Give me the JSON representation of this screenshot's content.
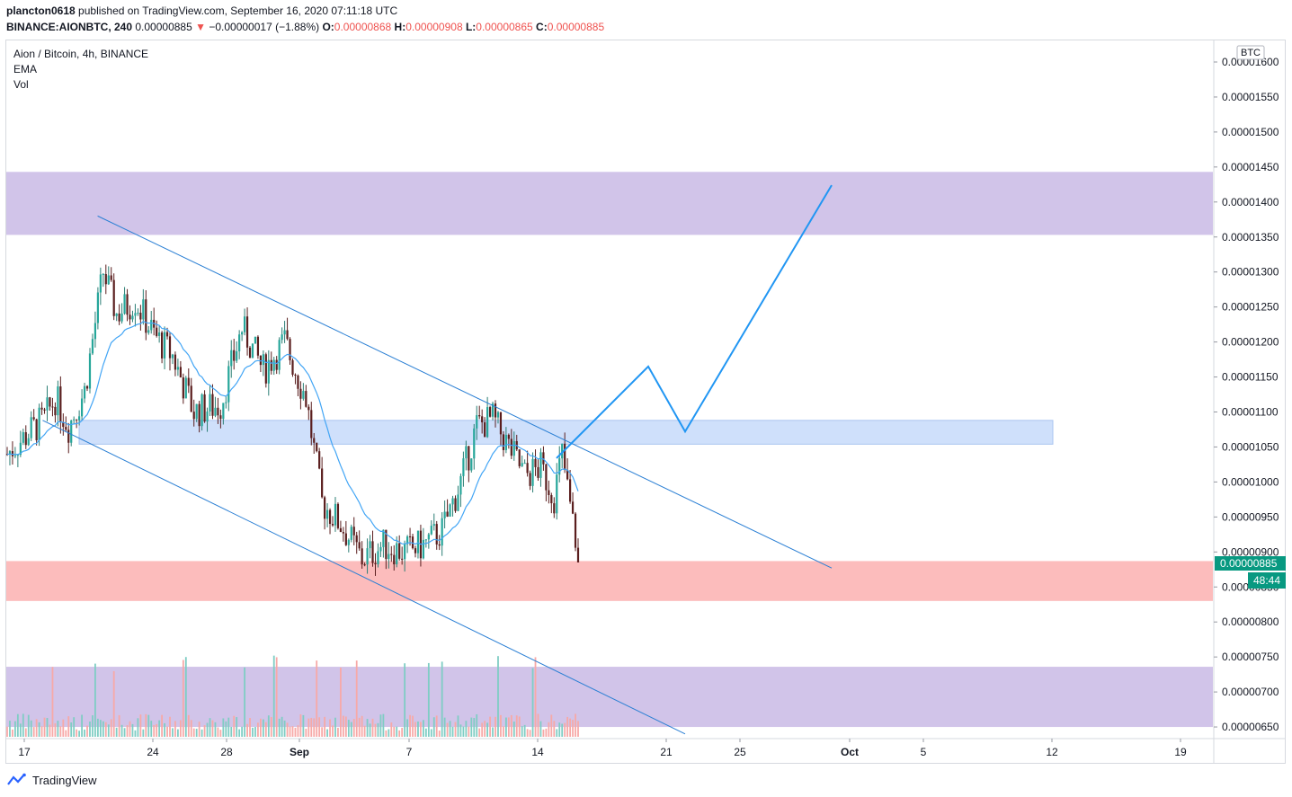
{
  "header": {
    "user": "plancton0618",
    "published_text": "published on TradingView.com, September 16, 2020 07:11:18 UTC",
    "symbol": "BINANCE:AIONBTC, 240",
    "last": "0.00000885",
    "change_arrow": "▼",
    "change": "−0.00000017 (−1.88%)",
    "o_label": "O:",
    "o_value": "0.00000868",
    "h_label": "H:",
    "h_value": "0.00000908",
    "l_label": "L:",
    "l_value": "0.00000865",
    "c_label": "C:",
    "c_value": "0.00000885"
  },
  "legend": {
    "title": "Aion / Bitcoin, 4h, BINANCE",
    "ema": "EMA",
    "vol": "Vol"
  },
  "price_axis": {
    "currency_badge": "BTC",
    "ticks": [
      "0.00001600",
      "0.00001550",
      "0.00001500",
      "0.00001450",
      "0.00001400",
      "0.00001350",
      "0.00001300",
      "0.00001250",
      "0.00001200",
      "0.00001150",
      "0.00001100",
      "0.00001050",
      "0.00001000",
      "0.00000950",
      "0.00000900",
      "0.00000850",
      "0.00000800",
      "0.00000750",
      "0.00000700",
      "0.00000650"
    ],
    "current_price_label": "0.00000885",
    "countdown_label": "48:44"
  },
  "time_axis": {
    "labels": [
      "17",
      "24",
      "28",
      "Sep",
      "7",
      "14",
      "21",
      "25",
      "Oct",
      "5",
      "12",
      "19"
    ],
    "bold_labels": [
      "Sep",
      "Oct"
    ]
  },
  "footer": {
    "brand": "TradingView"
  },
  "colors": {
    "up": "#26a69a",
    "down": "#ef5350",
    "ema": "#42a5f5",
    "trendline": "#2a7fd4",
    "projection": "#2196f3",
    "zone_purple": "#d1c4e9",
    "zone_blue": "#cfe0fb",
    "zone_red": "#fcbcbc",
    "price_badge": "#089981"
  },
  "chart_data": {
    "type": "candlestick",
    "symbol": "AIONBTC",
    "interval": "4h",
    "ylim": [
      6.4e-06,
      1.61e-05
    ],
    "x_axis_labels": [
      "17",
      "24",
      "28",
      "Sep",
      "7",
      "14",
      "21",
      "25",
      "Oct",
      "5",
      "12",
      "19"
    ],
    "last_close": 8.85e-06,
    "annotations": {
      "zones": [
        {
          "color": "purple",
          "from": 1.353e-05,
          "to": 1.443e-05
        },
        {
          "color": "blue",
          "from": 1.054e-05,
          "to": 1.088e-05
        },
        {
          "color": "red",
          "from": 8.3e-06,
          "to": 8.87e-06
        },
        {
          "color": "purple",
          "from": 6.5e-06,
          "to": 7.36e-06
        }
      ],
      "channel_upper": {
        "from": [
          "Aug 21",
          1.38e-05
        ],
        "to": [
          "Sep 30",
          8.77e-06
        ]
      },
      "channel_lower": {
        "from": [
          "Aug 18",
          1.088e-05
        ],
        "to": [
          "Sep 22",
          6.4e-06
        ]
      },
      "projection_path": [
        [
          "Sep 15",
          1.034e-05
        ],
        [
          "Sep 20",
          1.165e-05
        ],
        [
          "Sep 22",
          1.072e-05
        ],
        [
          "Sep 30",
          1.424e-05
        ]
      ]
    }
  }
}
